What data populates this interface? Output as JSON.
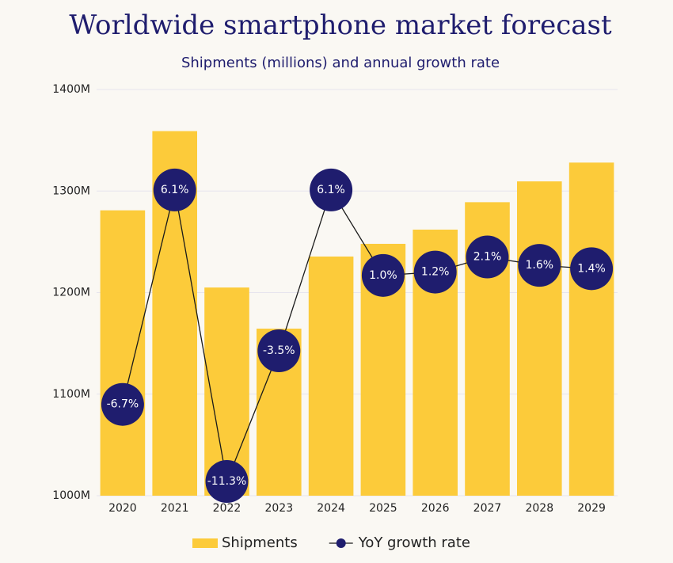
{
  "chart_data": {
    "type": "bar_line",
    "title": "Worldwide smartphone market forecast",
    "subtitle": "Shipments (millions) and annual growth rate",
    "categories": [
      "2020",
      "2021",
      "2022",
      "2023",
      "2024",
      "2025",
      "2026",
      "2027",
      "2028",
      "2029"
    ],
    "series": [
      {
        "name": "Shipments",
        "type": "bar",
        "color": "#fccb3a",
        "values": [
          1281,
          1359,
          1205,
          1164.5,
          1235.5,
          1248,
          1262,
          1289,
          1309.5,
          1328
        ]
      },
      {
        "name": "YoY growth rate",
        "type": "line",
        "axis": "y2",
        "color": "#1f1d6e",
        "values": [
          -6.7,
          6.1,
          -11.3,
          -3.5,
          6.1,
          1.0,
          1.2,
          2.1,
          1.6,
          1.4
        ],
        "value_labels": [
          "-6.7%",
          "6.1%",
          "-11.3%",
          "-3.5%",
          "6.1%",
          "1.0%",
          "1.2%",
          "2.1%",
          "1.6%",
          "1.4%"
        ]
      }
    ],
    "ylim": [
      1000,
      1400
    ],
    "yticks": [
      {
        "value": 1000,
        "label": "1000M"
      },
      {
        "value": 1100,
        "label": "1100M"
      },
      {
        "value": 1200,
        "label": "1200M"
      },
      {
        "value": 1300,
        "label": "1300M"
      },
      {
        "value": 1400,
        "label": "1400M"
      }
    ],
    "y2lim": [
      -12.15,
      12.1
    ],
    "grid": true,
    "legend": "bottom"
  }
}
